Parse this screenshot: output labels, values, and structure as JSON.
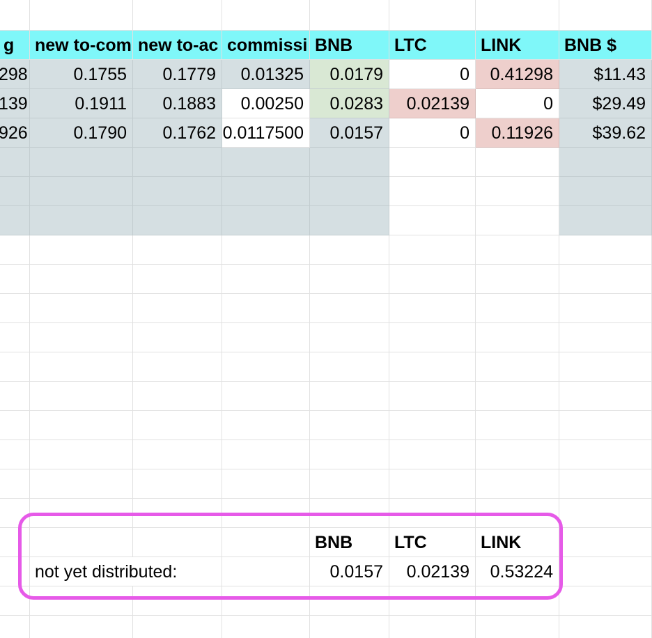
{
  "headers": [
    "g",
    "new to-com",
    "new to-ac",
    "commissi",
    "BNB",
    "LTC",
    "LINK",
    "BNB $"
  ],
  "rows": [
    [
      "298",
      "0.1755",
      "0.1779",
      "0.01325",
      "0.0179",
      "0",
      "0.41298",
      "$11.43"
    ],
    [
      "139",
      "0.1911",
      "0.1883",
      "0.00250",
      "0.0283",
      "0.02139",
      "0",
      "$29.49"
    ],
    [
      "926",
      "0.1790",
      "0.1762",
      "0.0117500",
      "0.0157",
      "0",
      "0.11926",
      "$39.62"
    ]
  ],
  "summary": {
    "headers": [
      "BNB",
      "LTC",
      "LINK"
    ],
    "label": "not yet distributed:",
    "values": [
      "0.0157",
      "0.02139",
      "0.53224"
    ]
  },
  "colors": {
    "header_fill": "#7ff7f9",
    "gray_fill": "#d5dfe2",
    "green_fill": "#d9e8d4",
    "pink_fill": "#eecfcc",
    "highlight_border": "#e65ae8"
  }
}
